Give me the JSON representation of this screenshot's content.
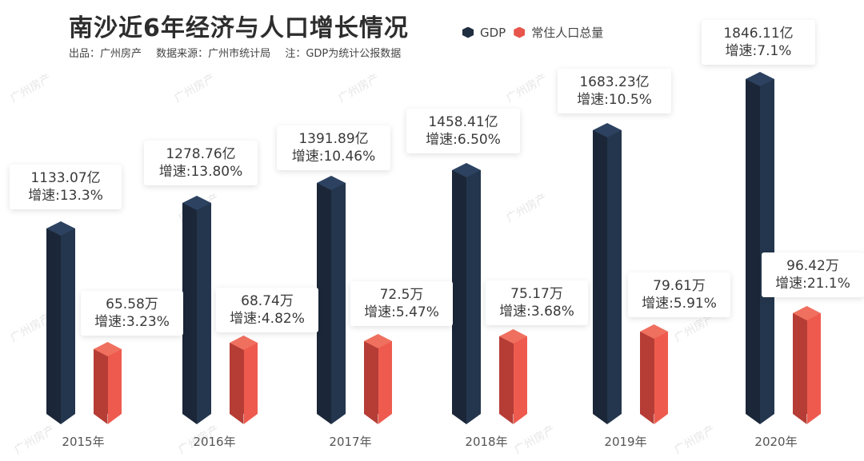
{
  "header": {
    "title": "南沙近6年经济与人口增长情况",
    "producer": "出品：广州房产",
    "source": "数据来源：广州市统计局",
    "note": "注：GDP为统计公报数据"
  },
  "legend": [
    {
      "label": "GDP",
      "color": "#1f2d40"
    },
    {
      "label": "常住人口总量",
      "color": "#e8554a"
    }
  ],
  "watermark_text": "广州房产",
  "colors": {
    "gdp_left": "#1b2738",
    "gdp_right": "#24364d",
    "gdp_top": "#2c4260",
    "pop_left": "#b53d36",
    "pop_right": "#ee5b4e",
    "pop_top": "#f0705f"
  },
  "chart_data": {
    "type": "bar",
    "title": "南沙近6年经济与人口增长情况",
    "categories": [
      "2015年",
      "2016年",
      "2017年",
      "2018年",
      "2019年",
      "2020年"
    ],
    "series": [
      {
        "name": "GDP",
        "unit": "亿",
        "values": [
          1133.07,
          1278.76,
          1391.89,
          1458.41,
          1683.23,
          1846.11
        ],
        "growth": [
          "13.3%",
          "13.80%",
          "10.46%",
          "6.50%",
          "10.5%",
          "7.1%"
        ]
      },
      {
        "name": "常住人口总量",
        "unit": "万",
        "values": [
          65.58,
          68.74,
          72.5,
          75.17,
          79.61,
          96.42
        ],
        "growth": [
          "3.23%",
          "4.82%",
          "5.47%",
          "3.68%",
          "5.91%",
          "21.1%"
        ]
      }
    ],
    "xlabel": "",
    "ylabel": "",
    "grid": false,
    "legend_position": "top"
  },
  "labels": {
    "gdp": [
      {
        "value": "1133.07亿",
        "growth": "增速:13.3%"
      },
      {
        "value": "1278.76亿",
        "growth": "增速:13.80%"
      },
      {
        "value": "1391.89亿",
        "growth": "增速:10.46%"
      },
      {
        "value": "1458.41亿",
        "growth": "增速:6.50%"
      },
      {
        "value": "1683.23亿",
        "growth": "增速:10.5%"
      },
      {
        "value": "1846.11亿",
        "growth": "增速:7.1%"
      }
    ],
    "pop": [
      {
        "value": "65.58万",
        "growth": "增速:3.23%"
      },
      {
        "value": "68.74万",
        "growth": "增速:4.82%"
      },
      {
        "value": "72.5万",
        "growth": "增速:5.47%"
      },
      {
        "value": "75.17万",
        "growth": "增速:3.68%"
      },
      {
        "value": "79.61万",
        "growth": "增速:5.91%"
      },
      {
        "value": "96.42万",
        "growth": "增速:21.1%"
      }
    ]
  }
}
